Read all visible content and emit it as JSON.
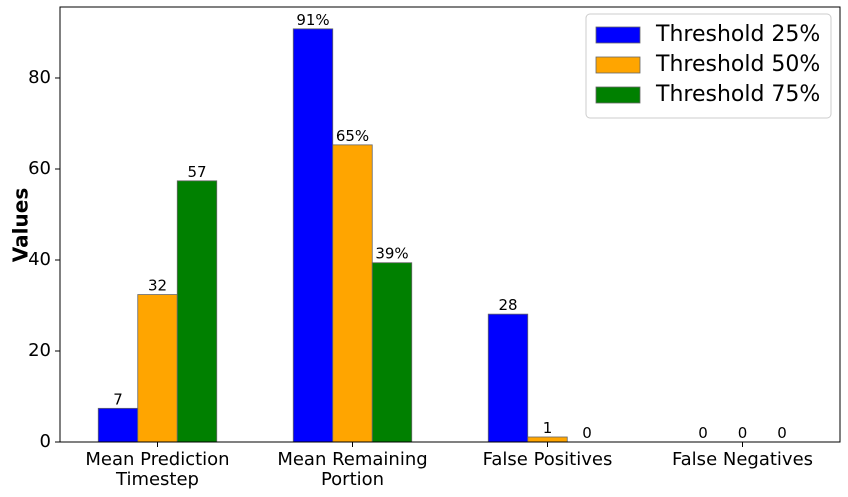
{
  "chart_data": {
    "type": "bar",
    "y_label": "Values",
    "categories": [
      "Mean Prediction\nTimestep",
      "Mean Remaining\nPortion",
      "False Positives",
      "False Negatives"
    ],
    "series": [
      {
        "name": "Threshold 25%",
        "color": "#0000ff",
        "values": [
          7.4,
          90.8,
          28.1,
          0
        ],
        "value_labels": [
          "7",
          "91%",
          "28",
          "0"
        ]
      },
      {
        "name": "Threshold 50%",
        "color": "#ffa500",
        "values": [
          32.4,
          65.3,
          1.1,
          0
        ],
        "value_labels": [
          "32",
          "65%",
          "1",
          "0"
        ]
      },
      {
        "name": "Threshold 75%",
        "color": "#008000",
        "values": [
          57.4,
          39.4,
          0,
          0
        ],
        "value_labels": [
          "57",
          "39%",
          "0",
          "0"
        ]
      }
    ],
    "ylim": [
      0,
      95.6
    ],
    "yticks": [
      0,
      20,
      40,
      60,
      80
    ],
    "grid": false,
    "legend": "upper right"
  }
}
